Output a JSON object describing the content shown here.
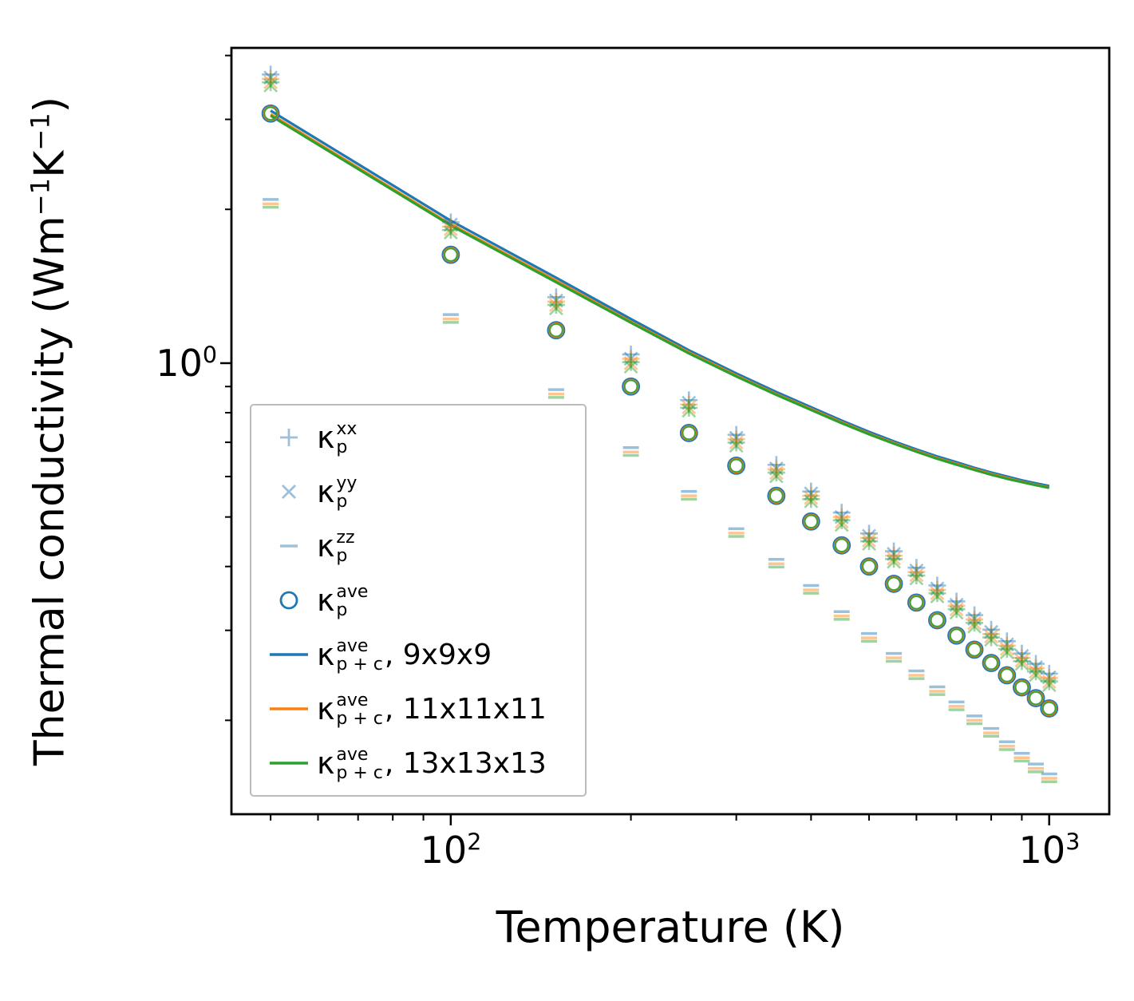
{
  "figure": {
    "background": "#ffffff"
  },
  "colors": {
    "blue": "#1f77b4",
    "orange": "#ff7f0e",
    "green": "#2ca02c",
    "scatter_light_blue": "#9fc0d8",
    "scatter_olive": "#b6bd98",
    "axis": "#000000",
    "legend_border": "#bcbcbc"
  },
  "axes": {
    "x": {
      "label": "Temperature (K)",
      "scale": "log",
      "ticks": [
        {
          "base": "10",
          "exp": "2",
          "value": 100
        },
        {
          "base": "10",
          "exp": "3",
          "value": 1000
        }
      ]
    },
    "y": {
      "label_parts": [
        "Thermal conductivity (Wm",
        "−1",
        "K",
        "−1",
        ")"
      ],
      "scale": "log",
      "ticks": [
        {
          "base": "10",
          "exp": "0",
          "value": 1
        }
      ]
    }
  },
  "legend": {
    "items": [
      {
        "marker": "plus",
        "color": "#9fc0d8",
        "base": "κ",
        "sup": "xx",
        "sub": "p",
        "rest": ""
      },
      {
        "marker": "x",
        "color": "#9fc0d8",
        "base": "κ",
        "sup": "yy",
        "sub": "p",
        "rest": ""
      },
      {
        "marker": "dash",
        "color": "#9fc0d8",
        "base": "κ",
        "sup": "zz",
        "sub": "p",
        "rest": ""
      },
      {
        "marker": "circle",
        "color": "#1f77b4",
        "base": "κ",
        "sup": "ave",
        "sub": "p",
        "rest": ""
      },
      {
        "marker": "line",
        "color": "#1f77b4",
        "base": "κ",
        "sup": "ave",
        "sub": "p + c",
        "rest": ", 9x9x9"
      },
      {
        "marker": "line",
        "color": "#ff7f0e",
        "base": "κ",
        "sup": "ave",
        "sub": "p + c",
        "rest": ", 11x11x11"
      },
      {
        "marker": "line",
        "color": "#2ca02c",
        "base": "κ",
        "sup": "ave",
        "sub": "p + c",
        "rest": ", 13x13x13"
      }
    ]
  },
  "chart_data": {
    "type": "scatter",
    "title": "",
    "xlabel": "Temperature (K)",
    "ylabel": "Thermal conductivity (Wm−1K−1)",
    "xscale": "log",
    "yscale": "log",
    "xlim": [
      43,
      1260
    ],
    "ylim": [
      0.131,
      4.14
    ],
    "x_major_ticks": [
      100,
      1000
    ],
    "x_minor_ticks": [
      50,
      60,
      70,
      80,
      90,
      200,
      300,
      400,
      500,
      600,
      700,
      800,
      900
    ],
    "y_major_ticks": [
      1
    ],
    "y_minor_ticks": [
      0.2,
      0.3,
      0.4,
      0.5,
      0.6,
      0.7,
      0.8,
      0.9,
      2,
      3,
      4
    ],
    "x": [
      50,
      100,
      150,
      200,
      250,
      300,
      350,
      400,
      450,
      500,
      550,
      600,
      650,
      700,
      750,
      800,
      850,
      900,
      950,
      1000
    ],
    "series": [
      {
        "name": "kappa_p_xx",
        "kind": "scatter",
        "marker": "plus",
        "values": [
          3.6,
          1.85,
          1.32,
          1.02,
          0.83,
          0.71,
          0.62,
          0.55,
          0.5,
          0.455,
          0.42,
          0.39,
          0.36,
          0.335,
          0.315,
          0.295,
          0.28,
          0.265,
          0.253,
          0.242
        ]
      },
      {
        "name": "kappa_p_yy",
        "kind": "scatter",
        "marker": "x",
        "values": [
          3.55,
          1.83,
          1.3,
          1.0,
          0.82,
          0.7,
          0.61,
          0.545,
          0.49,
          0.45,
          0.415,
          0.385,
          0.355,
          0.33,
          0.31,
          0.292,
          0.276,
          0.262,
          0.249,
          0.238
        ]
      },
      {
        "name": "kappa_p_zz",
        "kind": "scatter",
        "marker": "dash",
        "values": [
          2.05,
          1.22,
          0.87,
          0.67,
          0.55,
          0.465,
          0.405,
          0.36,
          0.32,
          0.29,
          0.265,
          0.245,
          0.228,
          0.213,
          0.2,
          0.189,
          0.178,
          0.169,
          0.161,
          0.154
        ]
      },
      {
        "name": "kappa_p_ave",
        "kind": "scatter",
        "marker": "circle",
        "values": [
          3.08,
          1.63,
          1.16,
          0.9,
          0.73,
          0.63,
          0.55,
          0.49,
          0.44,
          0.4,
          0.37,
          0.34,
          0.314,
          0.293,
          0.275,
          0.259,
          0.245,
          0.232,
          0.221,
          0.211
        ]
      },
      {
        "name": "kappa_p_plus_c_ave_9x9x9",
        "kind": "line",
        "color": "#1f77b4",
        "values": [
          3.12,
          1.9,
          1.47,
          1.22,
          1.06,
          0.955,
          0.878,
          0.82,
          0.772,
          0.734,
          0.703,
          0.678,
          0.657,
          0.64,
          0.624,
          0.611,
          0.6,
          0.59,
          0.582,
          0.575
        ]
      },
      {
        "name": "kappa_p_plus_c_ave_11x11x11",
        "kind": "line",
        "color": "#ff7f0e",
        "values": [
          3.07,
          1.87,
          1.45,
          1.205,
          1.05,
          0.946,
          0.87,
          0.813,
          0.766,
          0.728,
          0.698,
          0.673,
          0.652,
          0.635,
          0.62,
          0.607,
          0.596,
          0.586,
          0.578,
          0.571
        ]
      },
      {
        "name": "kappa_p_plus_c_ave_13x13x13",
        "kind": "line",
        "color": "#2ca02c",
        "values": [
          3.05,
          1.86,
          1.44,
          1.2,
          1.045,
          0.942,
          0.867,
          0.81,
          0.763,
          0.726,
          0.696,
          0.671,
          0.65,
          0.633,
          0.618,
          0.605,
          0.594,
          0.585,
          0.577,
          0.57
        ]
      }
    ]
  }
}
